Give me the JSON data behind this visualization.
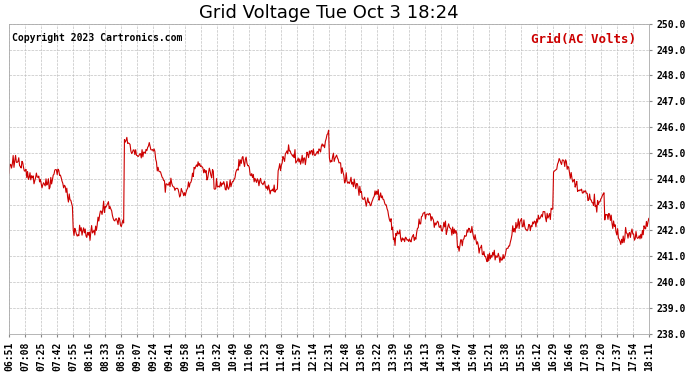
{
  "title": "Grid Voltage Tue Oct 3 18:24",
  "copyright": "Copyright 2023 Cartronics.com",
  "legend_label": "Grid(AC Volts)",
  "line_color": "#cc0000",
  "background_color": "#ffffff",
  "grid_color": "#bbbbbb",
  "ylim": [
    238.0,
    250.0
  ],
  "yticks": [
    238.0,
    239.0,
    240.0,
    241.0,
    242.0,
    243.0,
    244.0,
    245.0,
    246.0,
    247.0,
    248.0,
    249.0,
    250.0
  ],
  "x_labels": [
    "06:51",
    "07:08",
    "07:25",
    "07:42",
    "07:55",
    "08:16",
    "08:33",
    "08:50",
    "09:07",
    "09:24",
    "09:41",
    "09:58",
    "10:15",
    "10:32",
    "10:49",
    "11:06",
    "11:23",
    "11:40",
    "11:57",
    "12:14",
    "12:31",
    "12:48",
    "13:05",
    "13:22",
    "13:39",
    "13:56",
    "14:13",
    "14:30",
    "14:47",
    "15:04",
    "15:21",
    "15:38",
    "15:55",
    "16:12",
    "16:29",
    "16:46",
    "17:03",
    "17:20",
    "17:37",
    "17:54",
    "18:11"
  ],
  "title_fontsize": 13,
  "copyright_fontsize": 7,
  "legend_fontsize": 9,
  "tick_fontsize": 7,
  "line_width": 0.8,
  "figsize": [
    6.9,
    3.75
  ],
  "dpi": 100
}
